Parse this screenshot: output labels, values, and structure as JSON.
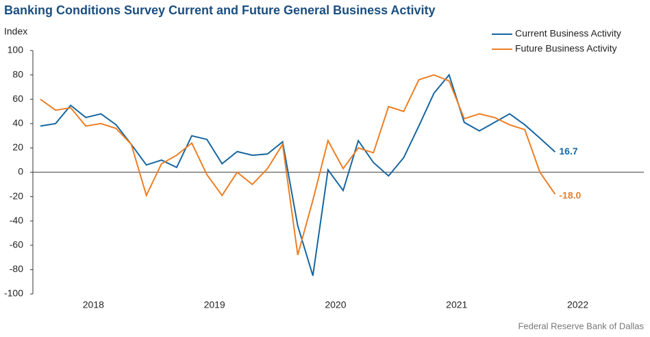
{
  "chart_data": {
    "type": "line",
    "title": "Banking Conditions Survey Current and Future General Business Activity",
    "y_label": "Index",
    "source": "Federal Reserve Bank of Dallas",
    "categories": [
      null,
      null,
      null,
      null,
      null,
      null,
      null,
      null,
      null,
      null,
      null,
      null,
      null,
      null,
      null,
      null,
      null,
      null,
      null,
      null,
      null,
      null,
      null,
      null,
      null,
      null,
      null,
      null,
      null,
      null,
      null,
      null,
      null,
      null,
      null
    ],
    "year_labels": [
      "2018",
      "2019",
      "2020",
      "2021",
      "2022"
    ],
    "series": [
      {
        "name": "Current Business Activity",
        "color": "#1565a0",
        "end_label": "16.7",
        "values": [
          38,
          40,
          55,
          45,
          48,
          39,
          23,
          6,
          10,
          4,
          30,
          27,
          7,
          17,
          14,
          15,
          25,
          -44,
          -85,
          2,
          -15,
          26,
          8,
          -3,
          12,
          38,
          65,
          80,
          41,
          34,
          41,
          48,
          39,
          28,
          16.7
        ]
      },
      {
        "name": "Future Business Activity",
        "color": "#ee7d22",
        "end_label": "-18.0",
        "values": [
          60,
          51,
          53,
          38,
          40,
          36,
          23,
          -19,
          7,
          14,
          24,
          -2,
          -19,
          0,
          -10,
          3,
          23,
          -68,
          -23,
          26,
          3,
          20,
          16,
          54,
          50,
          76,
          80,
          75,
          44,
          48,
          45,
          39,
          35,
          0,
          -18.0
        ]
      }
    ],
    "ylim": [
      -100,
      100
    ],
    "yticks": [
      -100,
      -80,
      -60,
      -40,
      -20,
      0,
      20,
      40,
      60,
      80,
      100
    ],
    "legend": "top-right"
  }
}
